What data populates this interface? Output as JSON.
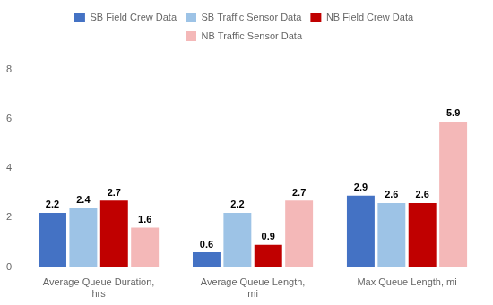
{
  "chart_data": {
    "type": "bar",
    "categories": [
      "Average Queue Duration,\nhrs",
      "Average Queue Length,\nmi",
      "Max Queue Length, mi"
    ],
    "series": [
      {
        "name": "SB Field Crew Data",
        "color": "#4472C4",
        "values": [
          2.2,
          0.6,
          2.9
        ]
      },
      {
        "name": "SB Traffic Sensor Data",
        "color": "#9DC3E6",
        "values": [
          2.4,
          2.2,
          2.6
        ]
      },
      {
        "name": "NB Field Crew Data",
        "color": "#C00000",
        "values": [
          2.7,
          0.9,
          2.6
        ]
      },
      {
        "name": "NB Traffic Sensor Data",
        "color": "#F4B8B8",
        "values": [
          1.6,
          2.7,
          5.9
        ]
      }
    ],
    "ylim": [
      0,
      8.8
    ],
    "yticks": [
      0,
      2,
      4,
      6,
      8
    ],
    "grid": false,
    "legend": "top",
    "data_labels": true
  }
}
